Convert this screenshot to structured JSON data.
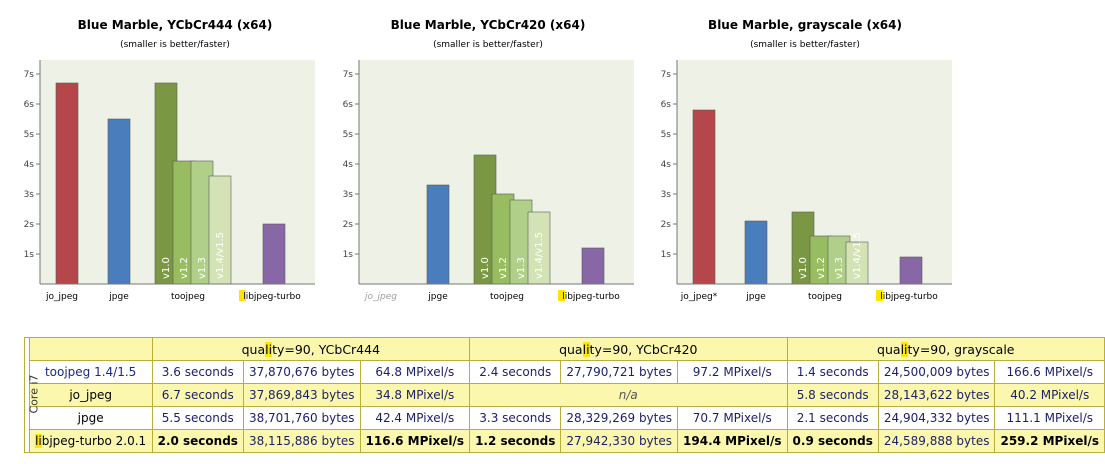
{
  "charts": [
    {
      "title": "Blue Marble, YCbCr444 (x64)",
      "subtitle": "(smaller is better/faster)",
      "categories": [
        "jo_jpeg",
        "jpge",
        "toojpeg",
        "libjpeg-turbo"
      ]
    },
    {
      "title": "Blue Marble, YCbCr420 (x64)",
      "subtitle": "(smaller is better/faster)",
      "categories": [
        "jo_jpeg",
        "jpge",
        "toojpeg",
        "libjpeg-turbo"
      ]
    },
    {
      "title": "Blue Marble, grayscale (x64)",
      "subtitle": "(smaller is better/faster)",
      "categories": [
        "jo_jpeg*",
        "jpge",
        "toojpeg",
        "libjpeg-turbo"
      ]
    }
  ],
  "chart_data": [
    {
      "type": "bar",
      "title": "Blue Marble, YCbCr444 (x64)",
      "subtitle": "(smaller is better/faster)",
      "ylim": [
        0,
        7.6
      ],
      "yticks": [
        "1s",
        "2s",
        "3s",
        "4s",
        "5s",
        "6s",
        "7s"
      ],
      "grid": false,
      "bars": [
        {
          "category": "jo_jpeg",
          "value": 6.7,
          "color": "#b5474a"
        },
        {
          "category": "jpge",
          "value": 5.5,
          "color": "#4a7dbc"
        },
        {
          "category": "toojpeg",
          "label": "v1.0",
          "value": 6.7,
          "color": "#7a9843"
        },
        {
          "category": "toojpeg",
          "label": "v1.2",
          "value": 4.1,
          "color": "#97bd60"
        },
        {
          "category": "toojpeg",
          "label": "v1.3",
          "value": 4.1,
          "color": "#b0d08a"
        },
        {
          "category": "toojpeg",
          "label": "v1.4/v1.5",
          "value": 3.6,
          "color": "#d3e3b6"
        },
        {
          "category": "libjpeg-turbo",
          "value": 2.0,
          "color": "#8767a5"
        }
      ]
    },
    {
      "type": "bar",
      "title": "Blue Marble, YCbCr420 (x64)",
      "subtitle": "(smaller is better/faster)",
      "ylim": [
        0,
        7.6
      ],
      "yticks": [
        "1s",
        "2s",
        "3s",
        "4s",
        "5s",
        "6s",
        "7s"
      ],
      "grid": false,
      "bars": [
        {
          "category": "jpge",
          "value": 3.3,
          "color": "#4a7dbc"
        },
        {
          "category": "toojpeg",
          "label": "v1.0",
          "value": 4.3,
          "color": "#7a9843"
        },
        {
          "category": "toojpeg",
          "label": "v1.2",
          "value": 3.0,
          "color": "#97bd60"
        },
        {
          "category": "toojpeg",
          "label": "v1.3",
          "value": 2.8,
          "color": "#b0d08a"
        },
        {
          "category": "toojpeg",
          "label": "v1.4/v1.5",
          "value": 2.4,
          "color": "#d3e3b6"
        },
        {
          "category": "libjpeg-turbo",
          "value": 1.2,
          "color": "#8767a5"
        }
      ]
    },
    {
      "type": "bar",
      "title": "Blue Marble, grayscale (x64)",
      "subtitle": "(smaller is better/faster)",
      "ylim": [
        0,
        7.6
      ],
      "yticks": [
        "1s",
        "2s",
        "3s",
        "4s",
        "5s",
        "6s",
        "7s"
      ],
      "grid": false,
      "bars": [
        {
          "category": "jo_jpeg*",
          "value": 5.8,
          "color": "#b5474a"
        },
        {
          "category": "jpge",
          "value": 2.1,
          "color": "#4a7dbc"
        },
        {
          "category": "toojpeg",
          "label": "v1.0",
          "value": 2.4,
          "color": "#7a9843"
        },
        {
          "category": "toojpeg",
          "label": "v1.2",
          "value": 1.6,
          "color": "#97bd60"
        },
        {
          "category": "toojpeg",
          "label": "v1.3",
          "value": 1.6,
          "color": "#b0d08a"
        },
        {
          "category": "toojpeg",
          "label": "v1.4/v1.5",
          "value": 1.4,
          "color": "#d3e3b6"
        },
        {
          "category": "libjpeg-turbo",
          "value": 0.9,
          "color": "#8767a5"
        }
      ]
    }
  ],
  "table": {
    "core": "Core i7",
    "headers": [
      "quality=90, YCbCr444",
      "quality=90, YCbCr420",
      "quality=90, grayscale"
    ],
    "rows": [
      {
        "name": "toojpeg 1.4/1.5",
        "cells": [
          "3.6 seconds",
          "37,870,676 bytes",
          "64.8 MPixel/s",
          "2.4 seconds",
          "27,790,721 bytes",
          "97.2 MPixel/s",
          "1.4 seconds",
          "24,500,009 bytes",
          "166.6 MPixel/s"
        ]
      },
      {
        "name": "jo_jpeg",
        "cells": [
          "6.7 seconds",
          "37,869,843 bytes",
          "34.8 MPixel/s"
        ],
        "na": "n/a",
        "cells_gray": [
          "5.8 seconds",
          "28,143,622 bytes",
          "40.2 MPixel/s"
        ]
      },
      {
        "name": "jpge",
        "cells": [
          "5.5 seconds",
          "38,701,760 bytes",
          "42.4 MPixel/s",
          "3.3 seconds",
          "28,329,269 bytes",
          "70.7 MPixel/s",
          "2.1 seconds",
          "24,904,332 bytes",
          "111.1 MPixel/s"
        ]
      },
      {
        "name": "libjpeg-turbo 2.0.1",
        "cells": [
          "2.0 seconds",
          "38,115,886 bytes",
          "116.6 MPixel/s",
          "1.2 seconds",
          "27,942,330 bytes",
          "194.4 MPixel/s",
          "0.9 seconds",
          "24,589,888 bytes",
          "259.2 MPixel/s"
        ]
      }
    ]
  },
  "colors": {
    "plot_bg": "#eef2e6",
    "table_yellow": "#fbf8ad",
    "highlight": "#ffe600"
  }
}
